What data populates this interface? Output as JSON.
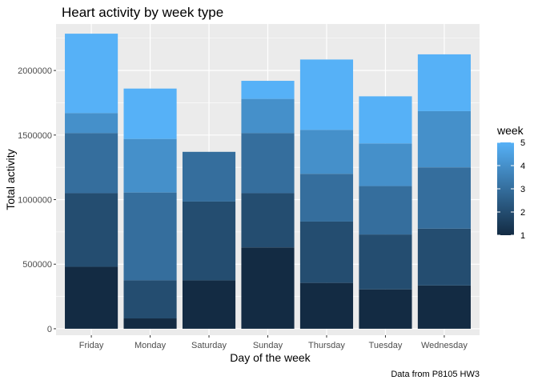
{
  "chart_data": {
    "type": "bar",
    "stacked": true,
    "title": "Heart activity by week type",
    "xlabel": "Day of the week",
    "ylabel": "Total activity",
    "caption": "Data from P8105 HW3",
    "categories": [
      "Friday",
      "Monday",
      "Saturday",
      "Sunday",
      "Thursday",
      "Tuesday",
      "Wednesday"
    ],
    "series": [
      {
        "name": "1",
        "values": [
          480000,
          80000,
          375000,
          630000,
          355000,
          305000,
          335000
        ]
      },
      {
        "name": "2",
        "values": [
          570000,
          295000,
          610000,
          420000,
          475000,
          425000,
          440000
        ]
      },
      {
        "name": "3",
        "values": [
          465000,
          680000,
          385000,
          465000,
          370000,
          375000,
          475000
        ]
      },
      {
        "name": "4",
        "values": [
          155000,
          415000,
          0,
          265000,
          340000,
          330000,
          435000
        ]
      },
      {
        "name": "5",
        "values": [
          615000,
          390000,
          0,
          140000,
          545000,
          365000,
          440000
        ]
      }
    ],
    "ylim": [
      -50000,
      2360000
    ],
    "yticks": [
      0,
      500000,
      1000000,
      1500000,
      2000000
    ],
    "ytick_labels": [
      "0",
      "500000",
      "1000000",
      "1500000",
      "2000000"
    ],
    "legend": {
      "title": "week",
      "position": "right",
      "type": "colorbar",
      "range": [
        1,
        5
      ],
      "ticks": [
        "1",
        "2",
        "3",
        "4",
        "5"
      ],
      "low_color": "#132B43",
      "high_color": "#56B1F7"
    },
    "panel_background": "#EBEBEB",
    "grid": true
  }
}
